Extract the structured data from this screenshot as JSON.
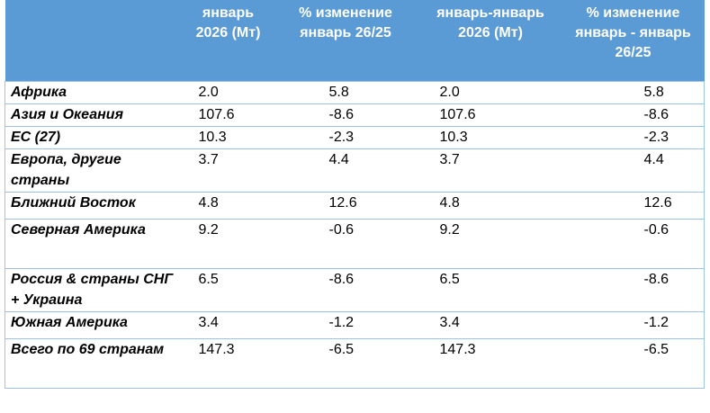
{
  "header": {
    "col_region": "",
    "col_jan": "январь 2026 (Мт)",
    "col_jan_change": "% изменение январь 26/25",
    "col_ytd": "январь-январь 2026 (Мт)",
    "col_ytd_change": "% изменение январь - январь 26/25"
  },
  "rows": [
    {
      "region": "Африка",
      "jan": "2.0",
      "jan_change": "5.8",
      "ytd": "2.0",
      "ytd_change": "5.8"
    },
    {
      "region": "Азия и Океания",
      "jan": "107.6",
      "jan_change": "-8.6",
      "ytd": "107.6",
      "ytd_change": "-8.6"
    },
    {
      "region": "ЕС (27)",
      "jan": "10.3",
      "jan_change": "-2.3",
      "ytd": "10.3",
      "ytd_change": "-2.3"
    },
    {
      "region": "Европа, другие страны",
      "jan": "3.7",
      "jan_change": "4.4",
      "ytd": "3.7",
      "ytd_change": "4.4"
    },
    {
      "region": "Ближний Восток",
      "jan": "4.8",
      "jan_change": "12.6",
      "ytd": "4.8",
      "ytd_change": "12.6"
    },
    {
      "region": "Северная Америка",
      "jan": "9.2",
      "jan_change": "-0.6",
      "ytd": "9.2",
      "ytd_change": "-0.6"
    },
    {
      "region": "Россия & страны СНГ + Украина",
      "jan": "6.5",
      "jan_change": "-8.6",
      "ytd": "6.5",
      "ytd_change": "-8.6"
    },
    {
      "region": "Южная Америка",
      "jan": "3.4",
      "jan_change": "-1.2",
      "ytd": "3.4",
      "ytd_change": "-1.2"
    },
    {
      "region": "Всего по 69 странам",
      "jan": "147.3",
      "jan_change": "-6.5",
      "ytd": "147.3",
      "ytd_change": "-6.5"
    }
  ]
}
